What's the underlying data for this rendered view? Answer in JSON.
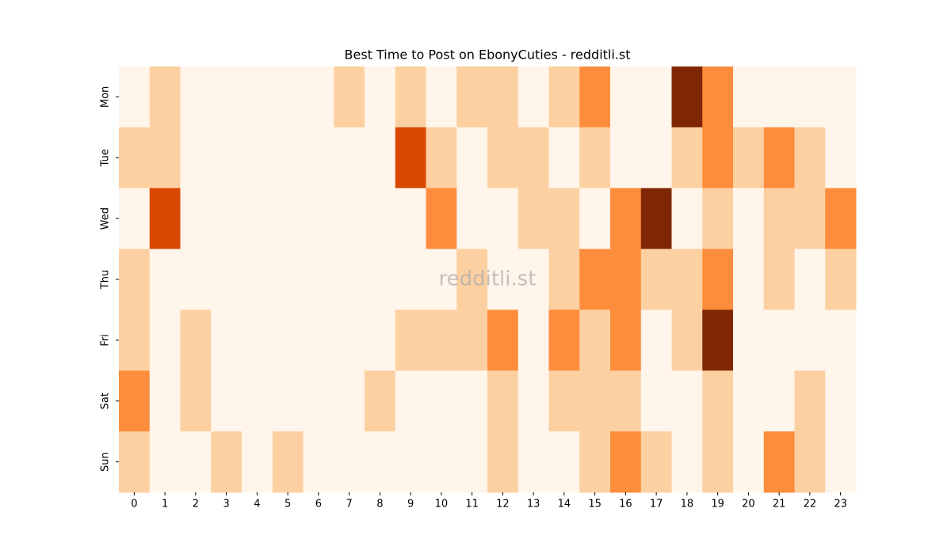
{
  "chart_data": {
    "type": "heatmap",
    "title": "Best Time to Post on EbonyCuties - redditli.st",
    "watermark": "redditli.st",
    "rows": [
      "Mon",
      "Tue",
      "Wed",
      "Thu",
      "Fri",
      "Sat",
      "Sun"
    ],
    "columns": [
      0,
      1,
      2,
      3,
      4,
      5,
      6,
      7,
      8,
      9,
      10,
      11,
      12,
      13,
      14,
      15,
      16,
      17,
      18,
      19,
      20,
      21,
      22,
      23
    ],
    "colorscale": [
      "#fff5eb",
      "#fdd0a2",
      "#fd8d3c",
      "#d94801",
      "#7f2704"
    ],
    "values": [
      [
        0,
        1,
        0,
        0,
        0,
        0,
        0,
        1,
        0,
        1,
        0,
        1,
        1,
        0,
        1,
        2,
        0,
        0,
        4,
        2,
        0,
        0,
        0,
        0
      ],
      [
        1,
        1,
        0,
        0,
        0,
        0,
        0,
        0,
        0,
        3,
        1,
        0,
        1,
        1,
        0,
        1,
        0,
        0,
        1,
        2,
        1,
        2,
        1,
        0
      ],
      [
        0,
        3,
        0,
        0,
        0,
        0,
        0,
        0,
        0,
        0,
        2,
        0,
        0,
        1,
        1,
        0,
        2,
        4,
        0,
        1,
        0,
        1,
        1,
        2
      ],
      [
        1,
        0,
        0,
        0,
        0,
        0,
        0,
        0,
        0,
        0,
        0,
        1,
        0,
        0,
        1,
        2,
        2,
        1,
        1,
        2,
        0,
        1,
        0,
        1
      ],
      [
        1,
        0,
        1,
        0,
        0,
        0,
        0,
        0,
        0,
        1,
        1,
        1,
        2,
        0,
        2,
        1,
        2,
        0,
        1,
        4,
        0,
        0,
        0,
        0
      ],
      [
        2,
        0,
        1,
        0,
        0,
        0,
        0,
        0,
        1,
        0,
        0,
        0,
        1,
        0,
        1,
        1,
        1,
        0,
        0,
        1,
        0,
        0,
        1,
        0
      ],
      [
        1,
        0,
        0,
        1,
        0,
        1,
        0,
        0,
        0,
        0,
        0,
        0,
        1,
        0,
        0,
        1,
        2,
        1,
        0,
        1,
        0,
        2,
        1,
        0
      ]
    ]
  }
}
